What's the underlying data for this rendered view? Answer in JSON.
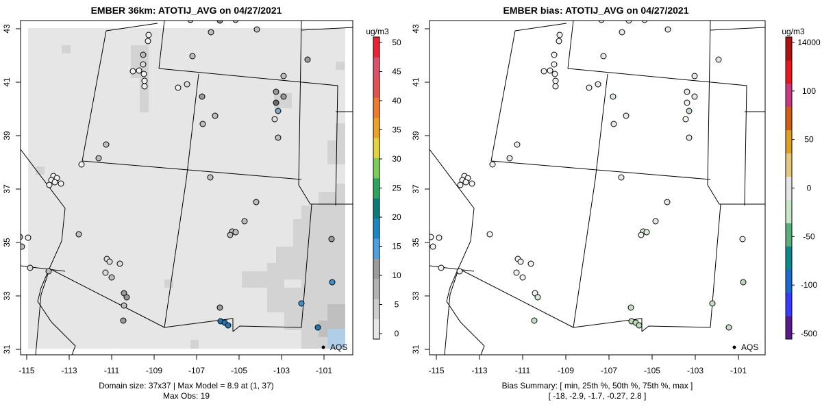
{
  "left_panel": {
    "title": "EMBER 36km: ATOTIJ_AVG on 04/27/2021",
    "legend_label": "AQS",
    "footer_line1": "Domain size: 37x37 | Max Model = 8.9 at (1, 37)",
    "footer_line2": "Max Obs: 19",
    "colorbar": {
      "unit": "ug/m3",
      "ticks": [
        "0",
        "5",
        "10",
        "15",
        "20",
        "25",
        "30",
        "35",
        "40",
        "45",
        "50"
      ],
      "colors": [
        "#e6e6e6",
        "#cccccc",
        "#b4b4b4",
        "#9c9c9c",
        "#4aa3e0",
        "#1a86c4",
        "#0a7a7a",
        "#2aa55a",
        "#7ccc5a",
        "#e6d23c",
        "#f0a020",
        "#ef7a2a",
        "#e85050",
        "#e0506c",
        "#f02030"
      ]
    }
  },
  "right_panel": {
    "title": "EMBER bias: ATOTIJ_AVG on 04/27/2021",
    "legend_label": "AQS",
    "footer_line1": "Bias Summary: [ min, 25th %, 50th %, 75th %, max ]",
    "footer_line2": "[ -18,   -2.9,   -1.7,   -0.27,   2.8 ]",
    "colorbar": {
      "unit": "ug/m3",
      "ticks": [
        "-500",
        "-100",
        "-50",
        "0",
        "50",
        "100",
        "14000"
      ],
      "colors": [
        "#5a1a8c",
        "#3a3aff",
        "#1a6ad0",
        "#0a8a8a",
        "#5ab07a",
        "#c8e6c8",
        "#e6e6e6",
        "#e6c87a",
        "#e0a020",
        "#d06010",
        "#c83a80",
        "#e8181c",
        "#b01010"
      ]
    }
  },
  "axes": {
    "x_ticks": [
      "-115",
      "-113",
      "-111",
      "-109",
      "-107",
      "-105",
      "-103",
      "-101"
    ],
    "y_ticks": [
      "31",
      "33",
      "35",
      "37",
      "39",
      "41",
      "43"
    ]
  }
}
